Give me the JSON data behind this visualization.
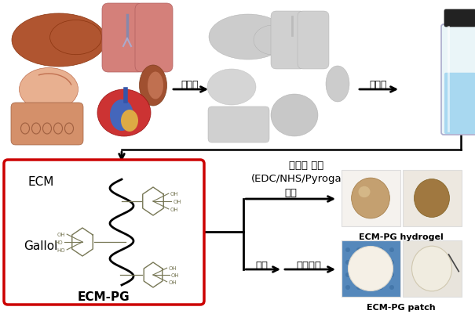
{
  "bg_color": "#ffffff",
  "arrow_color": "#000000",
  "box_border_color": "#cc0000",
  "text_color": "#000000",
  "labels": {
    "decell": "탈세포",
    "solub": "용액화",
    "gallol": "갈롤기 수식\n(EDC/NHS/Pyrogallol)",
    "oxidation": "산화",
    "molding": "몰딩",
    "freeze_dry": "동결건조",
    "ecm_pg_label": "ECM-PG",
    "ecm_label": "ECM",
    "gallol_label": "Gallol",
    "hydrogel_label": "ECM-PG hydrogel",
    "patch_label": "ECM-PG patch"
  },
  "figsize": [
    6.05,
    4.02
  ],
  "dpi": 100
}
